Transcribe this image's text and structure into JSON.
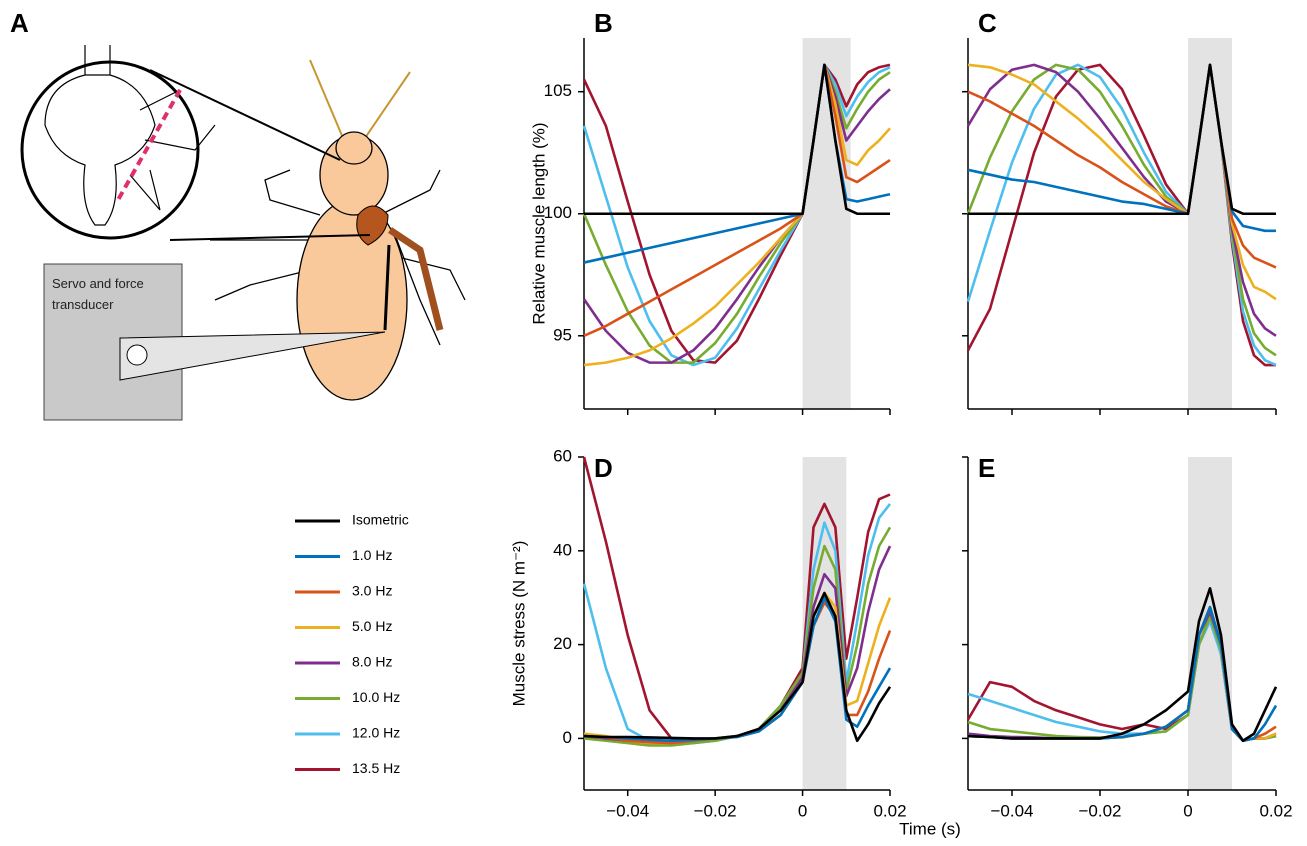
{
  "panel_a": {
    "label": "A",
    "box_text": "Servo and force transducer"
  },
  "xlabel": "Time (s)",
  "chart_data": [
    {
      "type": "line",
      "label": "B",
      "ylabel": "Relative muscle length (%)",
      "x": [
        -0.05,
        -0.045,
        -0.04,
        -0.035,
        -0.03,
        -0.025,
        -0.02,
        -0.015,
        -0.01,
        -0.005,
        0,
        0.0025,
        0.005,
        0.0075,
        0.01,
        0.0125,
        0.015,
        0.0175,
        0.02
      ],
      "xlim": [
        -0.05,
        0.02
      ],
      "ylim": [
        92,
        107.2
      ],
      "xticks": [
        -0.04,
        -0.02,
        0,
        0.02
      ],
      "yticks": [
        95,
        100,
        105
      ],
      "xtick_labels": false,
      "ytick_labels": true,
      "shade": [
        0,
        0.011
      ],
      "series": [
        {
          "color": "#000000",
          "values": [
            100,
            100,
            100,
            100,
            100,
            100,
            100,
            100,
            100,
            100,
            100,
            103,
            106.1,
            103,
            100.2,
            100,
            100,
            100,
            100
          ]
        },
        {
          "color": "#0072bd",
          "values": [
            98,
            98.2,
            98.4,
            98.6,
            98.8,
            99,
            99.2,
            99.4,
            99.6,
            99.8,
            100,
            103,
            106.1,
            103,
            100.6,
            100.5,
            100.6,
            100.7,
            100.8
          ]
        },
        {
          "color": "#d95319",
          "values": [
            95,
            95.4,
            95.9,
            96.4,
            96.9,
            97.4,
            97.9,
            98.4,
            98.9,
            99.4,
            100,
            103,
            106.1,
            104,
            101.5,
            101.3,
            101.6,
            101.9,
            102.2
          ]
        },
        {
          "color": "#edb120",
          "values": [
            93.8,
            93.9,
            94.1,
            94.4,
            94.9,
            95.5,
            96.2,
            97.1,
            98,
            99,
            100,
            103,
            106.1,
            104.5,
            102.2,
            102,
            102.6,
            103,
            103.5
          ]
        },
        {
          "color": "#7e2f8e",
          "values": [
            96.5,
            95.2,
            94.3,
            93.9,
            93.9,
            94.4,
            95.3,
            96.5,
            97.8,
            99,
            100,
            103,
            106.1,
            104.8,
            103,
            103.6,
            104.2,
            104.7,
            105.1
          ]
        },
        {
          "color": "#77ac30",
          "values": [
            100,
            97.9,
            96,
            94.6,
            93.9,
            93.9,
            94.7,
            95.9,
            97.4,
            98.8,
            100,
            103,
            106.1,
            105,
            103.5,
            104.3,
            105,
            105.5,
            105.8
          ]
        },
        {
          "color": "#4dbeee",
          "values": [
            103.6,
            100.7,
            97.8,
            95.6,
            94.2,
            93.8,
            94.1,
            95.3,
            96.9,
            98.5,
            100,
            103,
            106.1,
            105.3,
            104,
            104.8,
            105.4,
            105.8,
            106
          ]
        },
        {
          "color": "#a2142f",
          "values": [
            105.5,
            103.6,
            100.5,
            97.5,
            95.2,
            94,
            93.9,
            94.8,
            96.5,
            98.3,
            100,
            103,
            106.1,
            105.5,
            104.4,
            105.3,
            105.8,
            106,
            106.1
          ]
        }
      ]
    },
    {
      "type": "line",
      "label": "C",
      "x": [
        -0.05,
        -0.045,
        -0.04,
        -0.035,
        -0.03,
        -0.025,
        -0.02,
        -0.015,
        -0.01,
        -0.005,
        0,
        0.0025,
        0.005,
        0.0075,
        0.01,
        0.0125,
        0.015,
        0.0175,
        0.02
      ],
      "xlim": [
        -0.05,
        0.02
      ],
      "ylim": [
        92,
        107.2
      ],
      "xticks": [
        -0.04,
        -0.02,
        0,
        0.02
      ],
      "yticks": [
        95,
        100,
        105
      ],
      "xtick_labels": false,
      "ytick_labels": false,
      "shade": [
        0,
        0.01
      ],
      "series": [
        {
          "color": "#000000",
          "values": [
            100,
            100,
            100,
            100,
            100,
            100,
            100,
            100,
            100,
            100,
            100,
            103,
            106.1,
            103,
            100.2,
            100,
            100,
            100,
            100
          ]
        },
        {
          "color": "#0072bd",
          "values": [
            101.8,
            101.6,
            101.4,
            101.3,
            101.1,
            100.9,
            100.7,
            100.5,
            100.4,
            100.2,
            100,
            103,
            106.1,
            103,
            100.1,
            99.5,
            99.4,
            99.3,
            99.3
          ]
        },
        {
          "color": "#d95319",
          "values": [
            105,
            104.6,
            104.1,
            103.6,
            103,
            102.4,
            101.9,
            101.3,
            100.8,
            100.3,
            100,
            103,
            106.1,
            103,
            99.8,
            98.7,
            98.2,
            98,
            97.8
          ]
        },
        {
          "color": "#edb120",
          "values": [
            106.1,
            106,
            105.7,
            105.3,
            104.6,
            103.9,
            103.1,
            102.2,
            101.3,
            100.6,
            100,
            103,
            106.1,
            103,
            99.6,
            97.9,
            97,
            96.8,
            96.5
          ]
        },
        {
          "color": "#7e2f8e",
          "values": [
            103.6,
            105.1,
            105.9,
            106.1,
            105.8,
            105,
            103.9,
            102.7,
            101.5,
            100.5,
            100,
            103,
            106.1,
            103,
            99.4,
            97.2,
            95.9,
            95.3,
            95
          ]
        },
        {
          "color": "#77ac30",
          "values": [
            100,
            102.3,
            104.2,
            105.5,
            106.1,
            105.9,
            105,
            103.6,
            102,
            100.7,
            100,
            103,
            106.1,
            103,
            99.2,
            96.5,
            95.1,
            94.5,
            94.2
          ]
        },
        {
          "color": "#4dbeee",
          "values": [
            96.4,
            99.3,
            102.1,
            104.3,
            105.7,
            106.1,
            105.6,
            104.3,
            102.5,
            100.9,
            100,
            103,
            106.1,
            103,
            99,
            96,
            94.6,
            94,
            93.8
          ]
        },
        {
          "color": "#a2142f",
          "values": [
            94.4,
            96.1,
            99.3,
            102.5,
            104.8,
            105.9,
            106.1,
            105.1,
            103.2,
            101.2,
            100,
            103,
            106.1,
            103,
            98.8,
            95.6,
            94.2,
            93.8,
            93.8
          ]
        }
      ]
    },
    {
      "type": "line",
      "label": "D",
      "ylabel": "Muscle stress (N m⁻²)",
      "x": [
        -0.05,
        -0.045,
        -0.04,
        -0.035,
        -0.03,
        -0.025,
        -0.02,
        -0.015,
        -0.01,
        -0.005,
        0,
        0.0025,
        0.005,
        0.0075,
        0.01,
        0.0125,
        0.015,
        0.0175,
        0.02
      ],
      "xlim": [
        -0.05,
        0.02
      ],
      "ylim": [
        -11,
        60
      ],
      "xticks": [
        {
          "value": -0.04,
          "label": "−0.04"
        },
        {
          "value": -0.02,
          "label": "−0.02"
        },
        0,
        0.02
      ],
      "yticks": [
        0,
        20,
        40,
        60
      ],
      "xtick_labels": true,
      "ytick_labels": true,
      "shade": [
        0,
        0.01
      ],
      "series": [
        {
          "name": "Isometric",
          "color": "#000000",
          "values": [
            0.5,
            0.3,
            0.3,
            0.2,
            0.1,
            0,
            0,
            0.5,
            2,
            6,
            12,
            26,
            31,
            26,
            6,
            -0.5,
            3,
            7.5,
            11
          ]
        },
        {
          "name": "1.0 Hz",
          "color": "#0072bd",
          "values": [
            0.5,
            0.3,
            0,
            -0.3,
            -0.5,
            -0.3,
            0,
            0.3,
            1.5,
            5,
            12,
            24,
            30,
            25,
            4,
            2.5,
            7,
            11,
            15
          ]
        },
        {
          "name": "3.0 Hz",
          "color": "#d95319",
          "values": [
            0.5,
            0.2,
            -0.5,
            -0.8,
            -1,
            -0.5,
            0,
            0.3,
            1.5,
            5,
            12,
            24,
            29,
            26,
            5,
            5,
            10,
            17,
            23
          ]
        },
        {
          "name": "5.0 Hz",
          "color": "#edb120",
          "values": [
            1,
            0.5,
            -0.5,
            -1,
            -1,
            -0.5,
            0,
            0.5,
            2,
            6,
            12,
            26,
            31,
            28,
            7,
            8,
            16,
            24,
            30
          ]
        },
        {
          "name": "8.0 Hz",
          "color": "#7e2f8e",
          "values": [
            0.5,
            0,
            -0.5,
            -1,
            -1,
            -0.5,
            0,
            0.5,
            2,
            6,
            13,
            28,
            35,
            32,
            9,
            15,
            27,
            36,
            41
          ]
        },
        {
          "name": "10.0 Hz",
          "color": "#77ac30",
          "values": [
            0,
            -0.5,
            -1,
            -1.5,
            -1.5,
            -1,
            -0.5,
            0.5,
            2,
            7,
            14,
            32,
            41,
            36,
            10,
            20,
            33,
            41,
            45
          ]
        },
        {
          "name": "12.0 Hz",
          "color": "#4dbeee",
          "values": [
            33,
            15,
            2,
            -0.5,
            -1,
            -1,
            -0.5,
            0.5,
            2,
            7,
            14,
            36,
            46,
            40,
            12,
            25,
            39,
            47,
            50
          ]
        },
        {
          "name": "13.5 Hz",
          "color": "#a2142f",
          "values": [
            60,
            42,
            22,
            6,
            0,
            -0.5,
            -0.5,
            0.5,
            2,
            7,
            15,
            45,
            50,
            45,
            17,
            30,
            44,
            51,
            52
          ]
        }
      ]
    },
    {
      "type": "line",
      "label": "E",
      "x": [
        -0.05,
        -0.045,
        -0.04,
        -0.035,
        -0.03,
        -0.025,
        -0.02,
        -0.015,
        -0.01,
        -0.005,
        0,
        0.0025,
        0.005,
        0.0075,
        0.01,
        0.0125,
        0.015,
        0.0175,
        0.02
      ],
      "xlim": [
        -0.05,
        0.02
      ],
      "ylim": [
        -11,
        60
      ],
      "xticks": [
        {
          "value": -0.04,
          "label": "−0.04"
        },
        {
          "value": -0.02,
          "label": "−0.02"
        },
        0,
        0.02
      ],
      "yticks": [
        0,
        20,
        40,
        60
      ],
      "xtick_labels": true,
      "ytick_labels": false,
      "shade": [
        0,
        0.01
      ],
      "series": [
        {
          "color": "#000000",
          "values": [
            0.5,
            0.3,
            0,
            0,
            0,
            0,
            0,
            1,
            3,
            6,
            10,
            25,
            32,
            22,
            3,
            -0.5,
            1,
            6,
            11
          ]
        },
        {
          "color": "#0072bd",
          "values": [
            0.5,
            0.3,
            0,
            0,
            0,
            0,
            0,
            0.3,
            1,
            2.5,
            6,
            22,
            28,
            20,
            2,
            -0.5,
            0,
            3,
            7
          ]
        },
        {
          "color": "#d95319",
          "values": [
            0.5,
            0.3,
            0,
            0,
            0,
            0,
            0,
            0.3,
            1,
            2.5,
            6,
            22,
            28,
            20,
            2,
            -0.5,
            0,
            1,
            2.5
          ]
        },
        {
          "color": "#edb120",
          "values": [
            0.5,
            0.3,
            0,
            0,
            0,
            0,
            0,
            0.3,
            1,
            2.5,
            6,
            22,
            28,
            20,
            2,
            -0.5,
            0,
            0,
            1
          ]
        },
        {
          "color": "#7e2f8e",
          "values": [
            1,
            0.5,
            0.3,
            0.2,
            0,
            0,
            0,
            0.3,
            1,
            2.5,
            6,
            22,
            27,
            20,
            2,
            -0.5,
            0,
            0,
            1
          ]
        },
        {
          "color": "#77ac30",
          "values": [
            3.5,
            2,
            1.5,
            1,
            0.5,
            0.3,
            0.2,
            0.2,
            1,
            1.5,
            5,
            20,
            26,
            19,
            2,
            -0.5,
            0,
            0,
            0.5
          ]
        },
        {
          "color": "#4dbeee",
          "values": [
            9.5,
            8,
            6.5,
            5,
            3.5,
            2.5,
            1.5,
            1,
            1,
            1.5,
            5,
            20,
            25,
            18,
            2,
            -0.5,
            0,
            0,
            0.5
          ]
        },
        {
          "color": "#a2142f",
          "values": [
            4,
            12,
            11,
            8,
            6,
            4.5,
            3,
            2,
            3,
            2,
            5,
            20,
            26,
            18,
            2,
            -0.5,
            0,
            0,
            0.5
          ]
        }
      ]
    }
  ]
}
